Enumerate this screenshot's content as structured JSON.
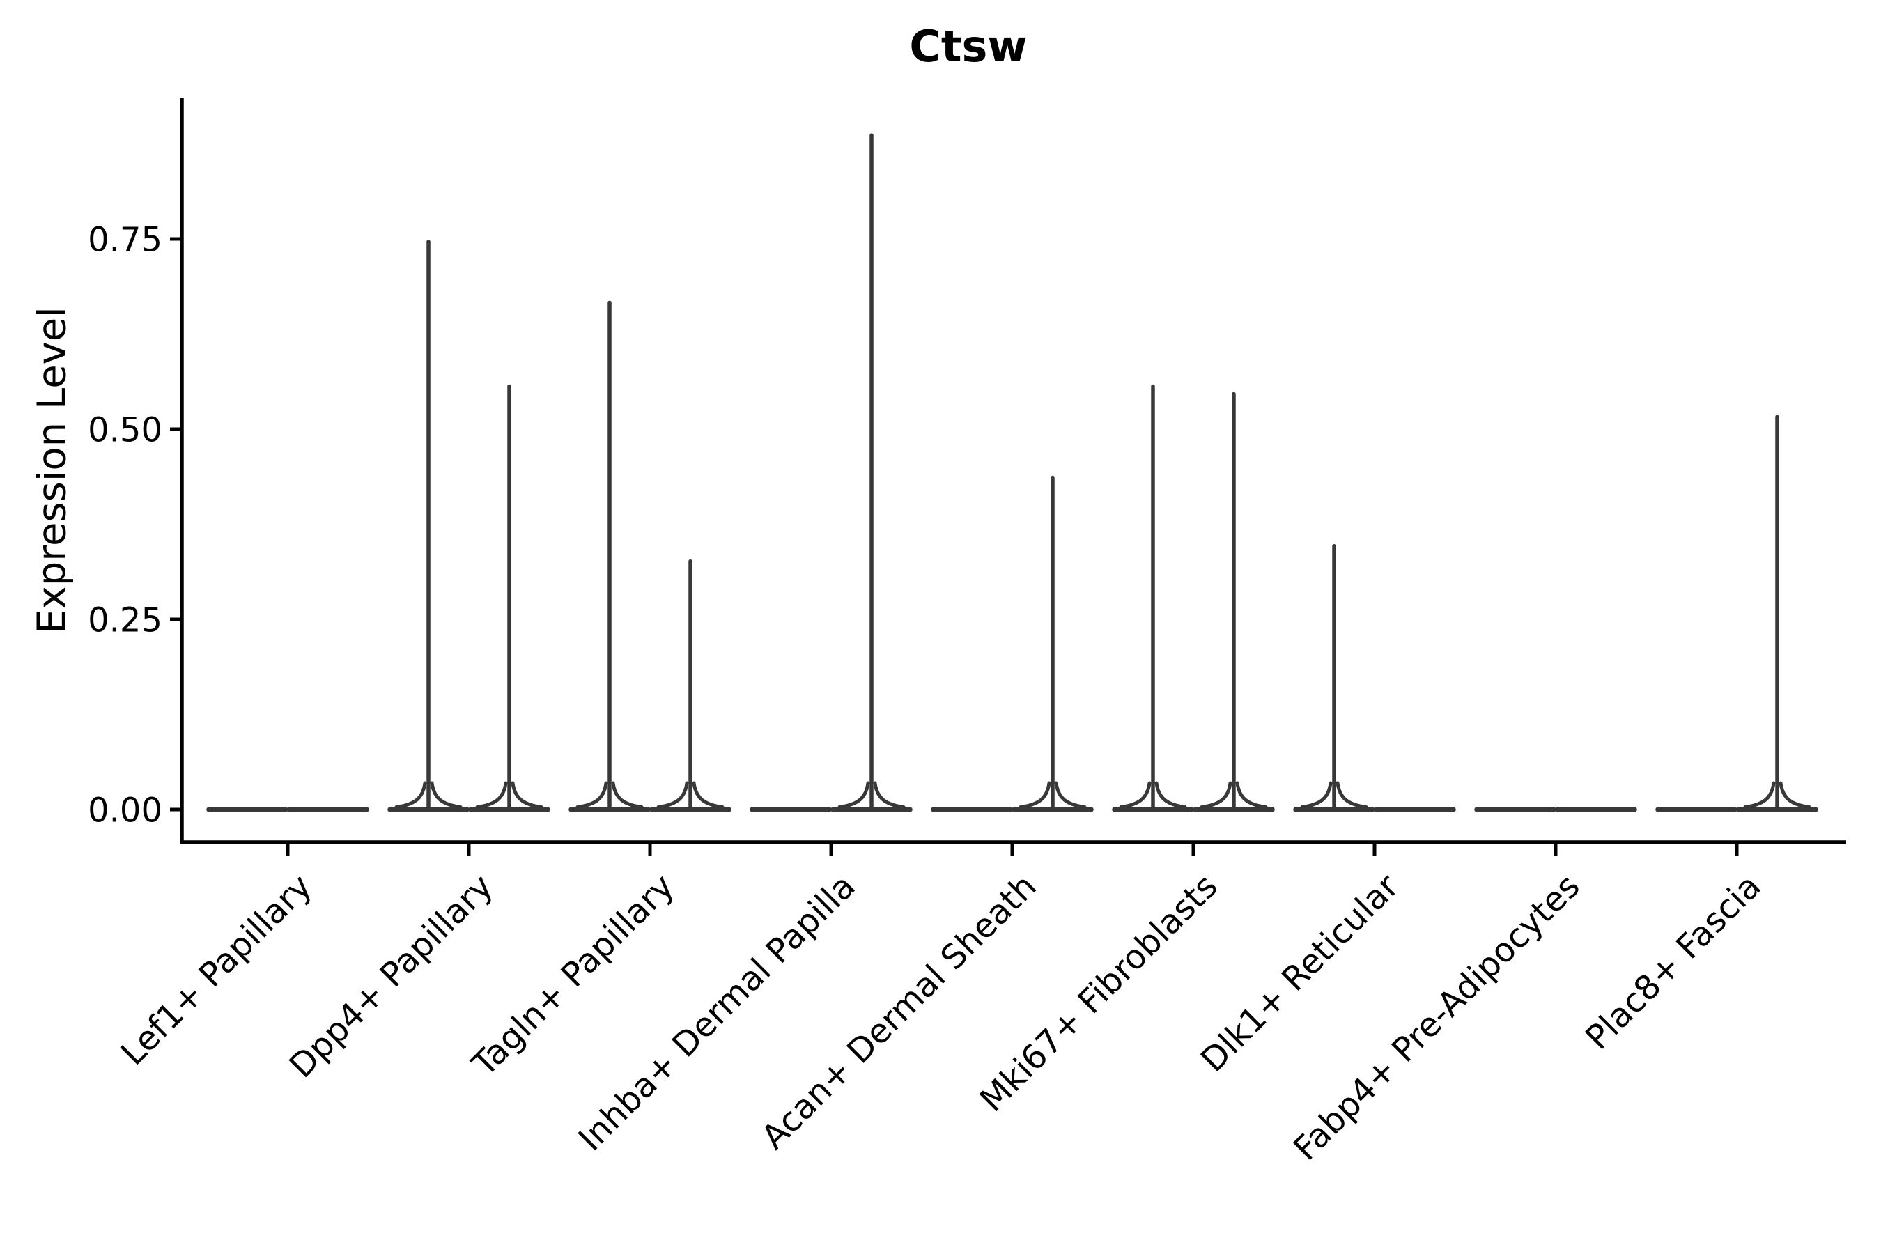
{
  "figure": {
    "background": "#ffffff"
  },
  "chart_data": {
    "type": "violin",
    "title": "Ctsw",
    "ylabel": "Expression Level",
    "xlabel": "",
    "categories": [
      "Lef1+ Papillary",
      "Dpp4+ Papillary",
      "Tagln+ Papillary",
      "Inhba+ Dermal Papilla",
      "Acan+ Dermal Sheath",
      "Mki67+ Fibroblasts",
      "Dlk1+ Reticular",
      "Fabp4+ Pre-Adipocytes",
      "Plac8+ Fascia"
    ],
    "series": [
      {
        "name": "left-violin",
        "max_expression": [
          0,
          0.75,
          0.67,
          0,
          0,
          0.56,
          0.35,
          0,
          0
        ]
      },
      {
        "name": "right-violin",
        "max_expression": [
          0,
          0.56,
          0.33,
          0.89,
          0.44,
          0.55,
          0,
          0,
          0.52
        ]
      }
    ],
    "baseline_value": 0,
    "y_ticks": [
      "0.00",
      "0.25",
      "0.50",
      "0.75"
    ],
    "ylim": [
      -0.04,
      0.94
    ],
    "grid": false,
    "legend_position": "none",
    "colors": {
      "axis": "#000000",
      "violin_outline": "#383838",
      "text": "#000000"
    }
  }
}
